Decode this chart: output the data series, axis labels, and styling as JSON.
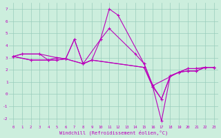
{
  "bg_color": "#cceedd",
  "line_color": "#bb00bb",
  "grid_color": "#99ccbb",
  "xlabel": "Windchill (Refroidissement éolien,°C)",
  "ylim": [
    -2.5,
    7.5
  ],
  "xlim": [
    -0.5,
    23.5
  ],
  "yticks": [
    -2,
    -1,
    0,
    1,
    2,
    3,
    4,
    5,
    6,
    7
  ],
  "xticks": [
    0,
    1,
    2,
    3,
    4,
    5,
    6,
    7,
    8,
    9,
    10,
    11,
    12,
    13,
    14,
    15,
    16,
    17,
    18,
    19,
    20,
    21,
    22,
    23
  ],
  "series": [
    {
      "x": [
        0,
        1,
        3,
        5,
        6,
        7,
        8,
        10,
        11,
        12,
        15,
        16,
        19,
        20,
        21,
        22,
        23
      ],
      "y": [
        3.1,
        3.3,
        3.3,
        3.0,
        2.9,
        4.5,
        2.5,
        4.5,
        7.0,
        6.5,
        2.5,
        0.7,
        1.8,
        2.1,
        2.1,
        2.2,
        2.2
      ]
    },
    {
      "x": [
        0,
        1,
        3,
        4,
        5,
        6,
        7,
        8,
        9,
        10,
        11,
        14,
        15,
        16,
        17,
        18,
        19,
        20,
        21,
        22,
        23
      ],
      "y": [
        3.1,
        3.3,
        3.3,
        2.8,
        3.0,
        2.9,
        4.5,
        2.5,
        2.8,
        4.5,
        5.4,
        3.3,
        2.5,
        0.7,
        -0.4,
        1.5,
        1.8,
        2.1,
        2.1,
        2.2,
        2.2
      ]
    },
    {
      "x": [
        0,
        2,
        4,
        5,
        6,
        8,
        9,
        15,
        16,
        17,
        18,
        19,
        20,
        21,
        22,
        23
      ],
      "y": [
        3.1,
        2.8,
        2.8,
        2.8,
        2.9,
        2.5,
        2.8,
        2.2,
        0.6,
        -2.2,
        1.5,
        1.8,
        1.9,
        1.9,
        2.2,
        2.2
      ]
    },
    {
      "x": [
        0,
        2,
        4,
        5,
        6,
        8,
        9,
        15,
        16,
        17,
        18,
        19,
        20,
        21,
        22,
        23
      ],
      "y": [
        3.1,
        2.8,
        2.8,
        2.8,
        2.9,
        2.5,
        2.8,
        2.2,
        0.6,
        -0.4,
        1.5,
        1.8,
        1.9,
        1.9,
        2.2,
        2.2
      ]
    }
  ]
}
